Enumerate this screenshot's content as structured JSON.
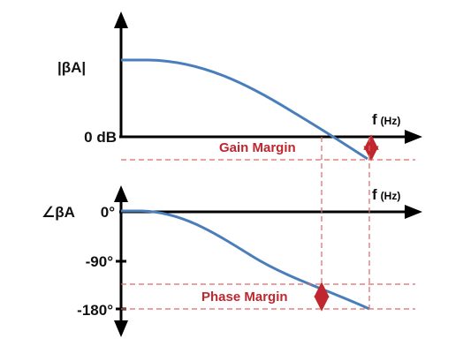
{
  "magnitude_plot": {
    "y_label": "|βA|",
    "zero_db_label": "0 dB",
    "x_label": "f",
    "x_unit": "(Hz)",
    "gain_margin_label": "Gain Margin"
  },
  "phase_plot": {
    "y_label": "∠βA",
    "tick_0": "0°",
    "tick_90": "-90°",
    "tick_180": "-180°",
    "x_label": "f",
    "x_unit": "(Hz)",
    "phase_margin_label": "Phase Margin"
  },
  "colors": {
    "curve": "#4a7ebb",
    "axes": "#000000",
    "margin": "#c0262d",
    "guide": "#e06666"
  }
}
